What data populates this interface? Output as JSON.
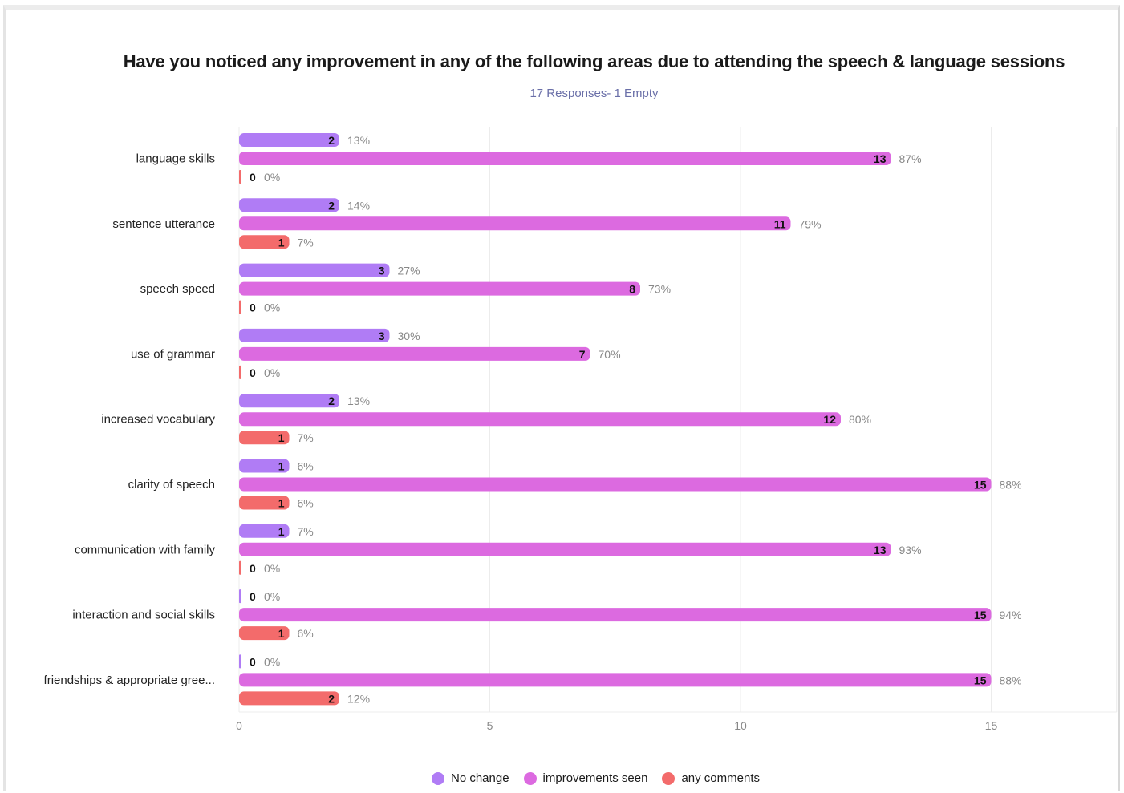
{
  "chart_data": {
    "type": "bar",
    "orientation": "horizontal",
    "title": "Have you noticed any improvement in any of the following areas due to attending the speech & language sessions",
    "subtitle": "17 Responses- 1 Empty",
    "categories": [
      "language skills",
      "sentence utterance",
      "speech speed",
      "use of grammar",
      "increased vocabulary",
      "clarity of speech",
      "communication with family",
      "interaction and social skills",
      "friendships & appropriate gree..."
    ],
    "series": [
      {
        "name": "No change",
        "color": "#b07cf5",
        "values": [
          2,
          2,
          3,
          3,
          2,
          1,
          1,
          0,
          0
        ],
        "percents": [
          "13%",
          "14%",
          "27%",
          "30%",
          "13%",
          "6%",
          "7%",
          "0%",
          "0%"
        ]
      },
      {
        "name": "improvements seen",
        "color": "#dc6ae0",
        "values": [
          13,
          11,
          8,
          7,
          12,
          15,
          13,
          15,
          15
        ],
        "percents": [
          "87%",
          "79%",
          "73%",
          "70%",
          "80%",
          "88%",
          "93%",
          "94%",
          "88%"
        ]
      },
      {
        "name": "any comments",
        "color": "#f36b6b",
        "values": [
          0,
          1,
          0,
          0,
          1,
          1,
          0,
          1,
          2
        ],
        "percents": [
          "0%",
          "7%",
          "0%",
          "0%",
          "7%",
          "6%",
          "0%",
          "6%",
          "12%"
        ]
      }
    ],
    "xlim": [
      0,
      17.5
    ],
    "xticks": [
      0,
      5,
      10,
      15
    ],
    "grid": "vertical",
    "legend": "bottom"
  }
}
